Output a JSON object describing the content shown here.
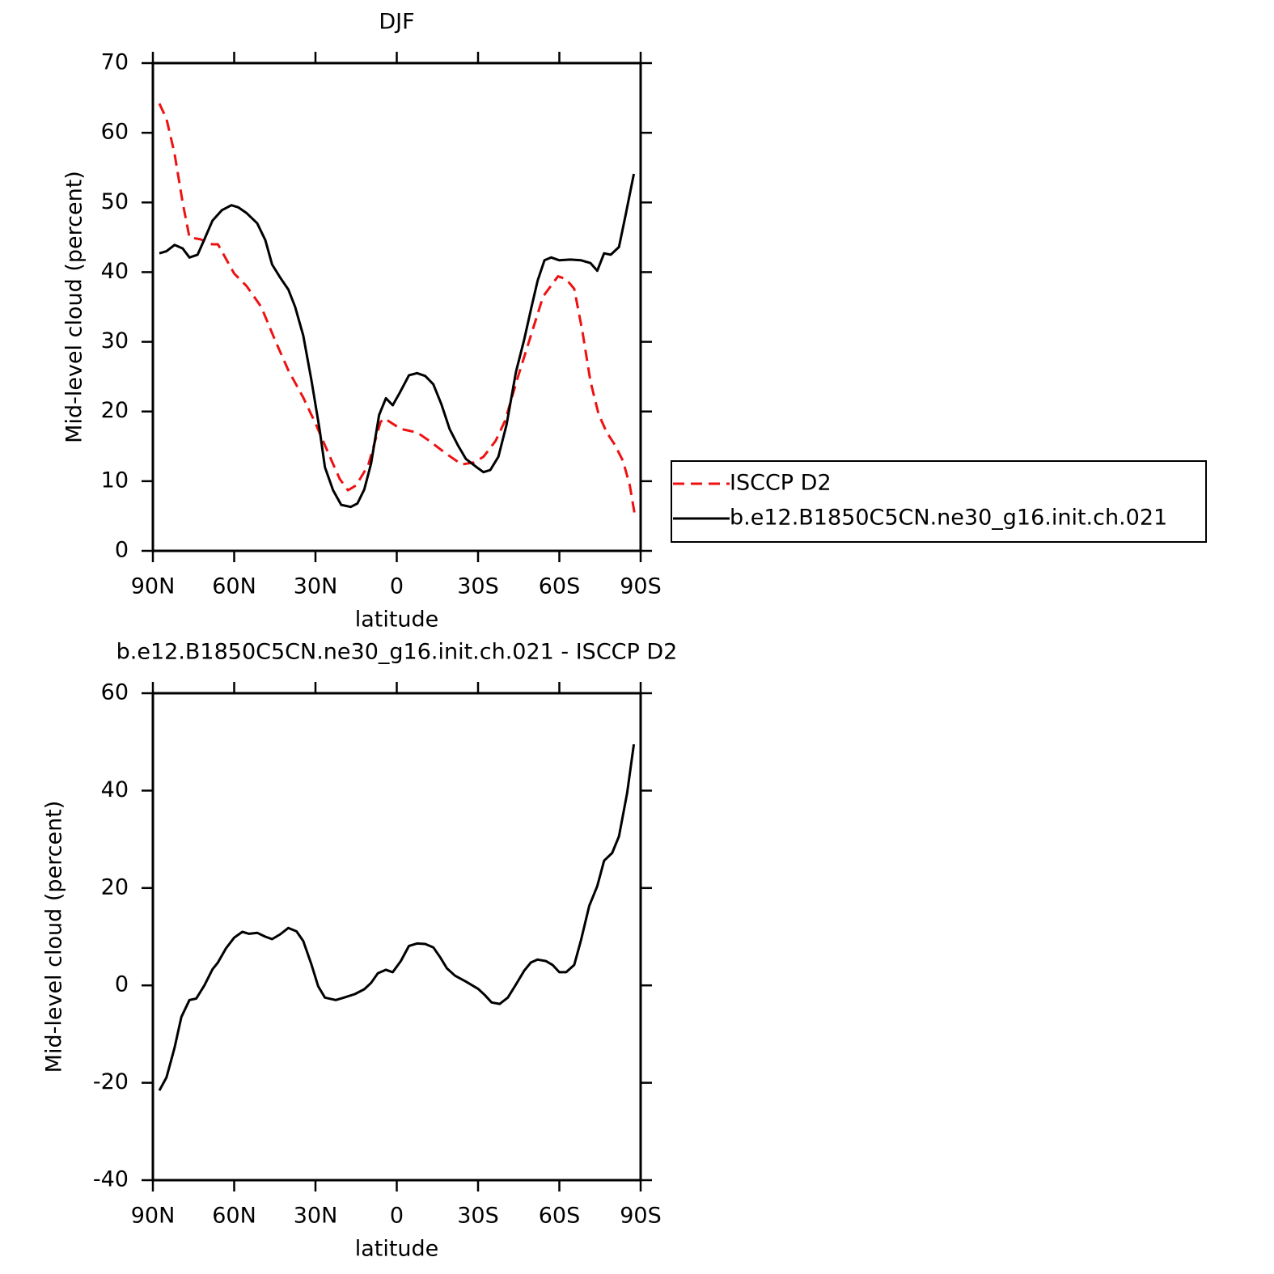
{
  "chart_data": [
    {
      "type": "line",
      "title": "DJF",
      "xlabel": "latitude",
      "ylabel": "Mid-level cloud (percent)",
      "xlim": [
        90,
        -90
      ],
      "xticks": [
        {
          "value": 90,
          "label": "90N"
        },
        {
          "value": 60,
          "label": "60N"
        },
        {
          "value": 30,
          "label": "30N"
        },
        0,
        {
          "value": -30,
          "label": "30S"
        },
        {
          "value": -60,
          "label": "60S"
        },
        {
          "value": -90,
          "label": "90S"
        }
      ],
      "ylim": [
        0,
        70
      ],
      "yticks": [
        0,
        10,
        20,
        30,
        40,
        50,
        60,
        70
      ],
      "legend": "right",
      "series": [
        {
          "name": "ISCCP D2",
          "color": "#ee1111",
          "dash": true,
          "x": [
            87.6,
            85,
            82,
            79,
            76.5,
            72.4,
            68.2,
            66,
            60,
            55.4,
            50,
            45,
            40,
            34.5,
            30,
            24,
            21,
            18,
            15,
            10.5,
            6,
            4.5,
            -1.5,
            -7.5,
            -12,
            -18,
            -24,
            -28.5,
            -32,
            -36.5,
            -40,
            -44.5,
            -49,
            -54,
            -59.5,
            -62.5,
            -65.5,
            -68.5,
            -71.5,
            -74.5,
            -77.5,
            -80.5,
            -83.5,
            -86,
            -88
          ],
          "values": [
            64.2,
            62,
            57,
            50,
            45,
            44.7,
            44,
            44,
            39.8,
            38,
            35,
            30.3,
            25.9,
            22,
            18.3,
            12.9,
            10.3,
            8.7,
            9.4,
            12.3,
            18.5,
            19,
            17.5,
            17,
            15.8,
            14,
            12.4,
            12.7,
            13.5,
            15.8,
            18.7,
            24.7,
            30.3,
            36.5,
            39.4,
            39,
            37.6,
            31.5,
            24.3,
            19.6,
            17,
            15.2,
            12.9,
            9.4,
            4.8
          ]
        },
        {
          "name": "b.e12.B1850C5CN.ne30_g16.init.ch.021",
          "color": "#000000",
          "dash": false,
          "x": [
            87.6,
            85,
            82,
            79,
            76.5,
            73.5,
            71,
            68,
            64.5,
            61,
            58.5,
            55.5,
            51.5,
            48.5,
            46,
            43,
            40,
            37.5,
            34.5,
            31.5,
            28.5,
            26.5,
            23.5,
            20.5,
            17,
            14.5,
            12,
            9.5,
            6.5,
            4,
            1.5,
            -1,
            -4.5,
            -7.5,
            -10.5,
            -13.5,
            -16.5,
            -19.5,
            -22.5,
            -25.5,
            -29.5,
            -32,
            -34.5,
            -37.5,
            -40.5,
            -44,
            -47,
            -49.5,
            -52,
            -54.5,
            -57,
            -60,
            -64,
            -68,
            -71.5,
            -74,
            -76.5,
            -79,
            -82,
            -84.5,
            -87.5
          ],
          "values": [
            42.7,
            43,
            43.9,
            43.4,
            42.1,
            42.5,
            44.7,
            47.4,
            48.9,
            49.6,
            49.3,
            48.5,
            47,
            44.6,
            41.1,
            39.2,
            37.5,
            35,
            30.9,
            24.5,
            17.5,
            12,
            8.7,
            6.6,
            6.3,
            6.8,
            8.8,
            12.5,
            19.5,
            21.9,
            20.9,
            22.6,
            25.2,
            25.5,
            25.1,
            23.9,
            21,
            17.5,
            15.2,
            13.2,
            12,
            11.3,
            11.6,
            13.5,
            18.1,
            25.7,
            30.3,
            34.6,
            38.8,
            41.7,
            42.1,
            41.7,
            41.8,
            41.7,
            41.3,
            40.2,
            42.7,
            42.5,
            43.6,
            48.3,
            54.1
          ]
        }
      ]
    },
    {
      "type": "line",
      "title": "b.e12.B1850C5CN.ne30_g16.init.ch.021 - ISCCP D2",
      "xlabel": "latitude",
      "ylabel": "Mid-level cloud (percent)",
      "xlim": [
        90,
        -90
      ],
      "xticks": [
        {
          "value": 90,
          "label": "90N"
        },
        {
          "value": 60,
          "label": "60N"
        },
        {
          "value": 30,
          "label": "30N"
        },
        0,
        {
          "value": -30,
          "label": "30S"
        },
        {
          "value": -60,
          "label": "60S"
        },
        {
          "value": -90,
          "label": "90S"
        }
      ],
      "ylim": [
        -40,
        60
      ],
      "yticks": [
        -40,
        -20,
        0,
        20,
        40,
        60
      ],
      "series": [
        {
          "color": "#000000",
          "dash": false,
          "x": [
            87.6,
            85,
            82,
            79.5,
            76.5,
            74,
            71,
            68,
            66,
            63,
            60,
            57,
            54.5,
            51.5,
            48.5,
            46,
            43,
            40,
            37,
            34.5,
            31.5,
            29,
            26.5,
            22.5,
            19.5,
            15.5,
            12,
            9.5,
            7,
            4,
            1.5,
            -1.5,
            -4.5,
            -7.5,
            -10.5,
            -13.5,
            -16,
            -18.5,
            -21.5,
            -25.5,
            -30,
            -32.5,
            -35,
            -38,
            -41,
            -44,
            -47,
            -49.5,
            -52,
            -55,
            -57.5,
            -60,
            -62.5,
            -65.5,
            -68,
            -71,
            -74,
            -76.5,
            -79.5,
            -82,
            -85,
            -87.5
          ],
          "values": [
            -21.6,
            -18.9,
            -12.8,
            -6.5,
            -3,
            -2.7,
            0,
            3.3,
            4.7,
            7.6,
            9.8,
            11,
            10.6,
            10.8,
            10,
            9.5,
            10.5,
            11.8,
            11.1,
            9.1,
            4.3,
            -0.2,
            -2.5,
            -3,
            -2.5,
            -1.8,
            -0.8,
            0.5,
            2.5,
            3.2,
            2.7,
            5,
            8.1,
            8.6,
            8.5,
            7.8,
            5.8,
            3.5,
            2,
            0.8,
            -0.7,
            -2,
            -3.5,
            -3.8,
            -2.5,
            0.2,
            3,
            4.7,
            5.3,
            5,
            4.2,
            2.7,
            2.7,
            4.2,
            9.3,
            16.3,
            20.4,
            25.6,
            27.2,
            30.6,
            39.5,
            49.5
          ]
        }
      ]
    }
  ]
}
